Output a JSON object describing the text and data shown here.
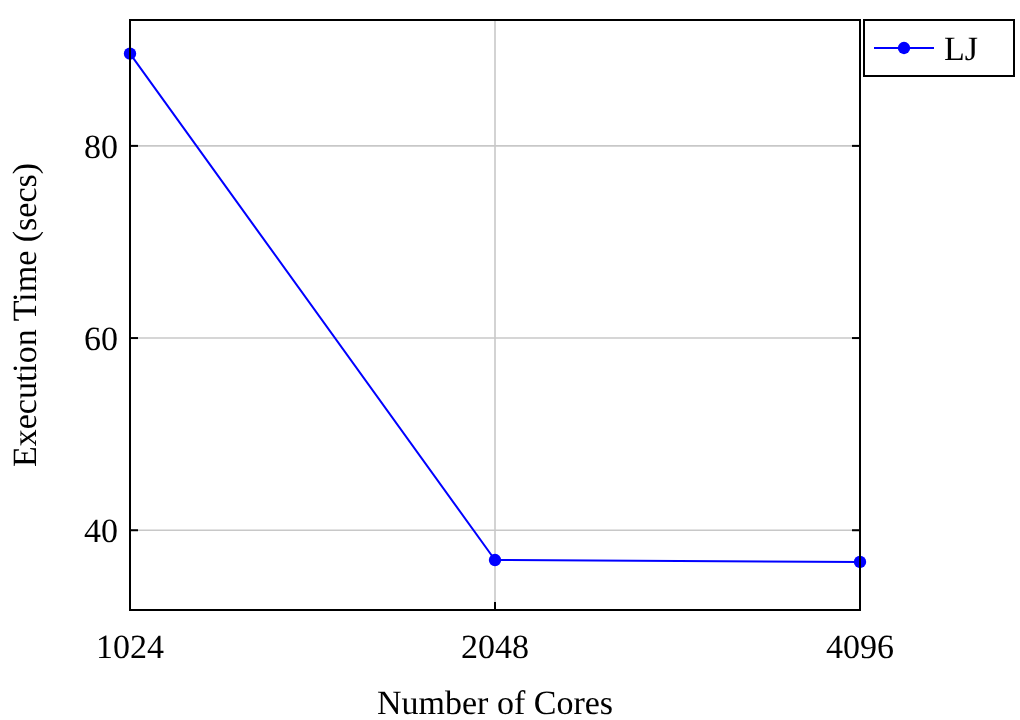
{
  "chart_data": {
    "type": "line",
    "xlabel": "Number of Cores",
    "ylabel": "Execution Time (secs)",
    "categories": [
      "1024",
      "2048",
      "4096"
    ],
    "series": [
      {
        "name": "LJ",
        "color": "#0000ff",
        "values": [
          89.6,
          36.9,
          36.7
        ]
      }
    ],
    "ylim": [
      31.7,
      93.1
    ],
    "yticks": [
      40,
      60,
      80
    ],
    "grid": true,
    "legend": "top right",
    "marker": "circle",
    "line_style": "solid"
  }
}
